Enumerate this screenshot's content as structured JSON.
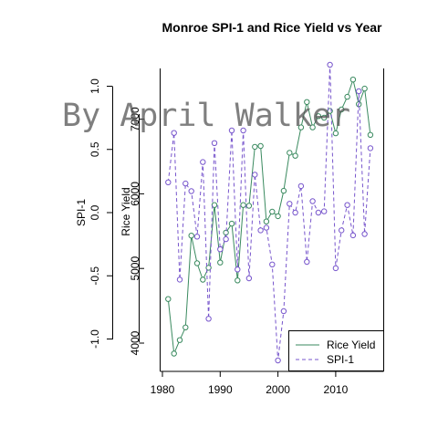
{
  "chart_data": {
    "type": "line",
    "title": "Monroe SPI-1 and Rice Yield vs Year",
    "xlabel": "",
    "x_ticks": [
      "1980",
      "1990",
      "2000",
      "2010"
    ],
    "left_axis": {
      "label": "SPI-1",
      "ticks": [
        "-1.0",
        "-0.5",
        "0.0",
        "0.5",
        "1.0"
      ],
      "range": [
        -1.0,
        1.0
      ]
    },
    "inner_axis": {
      "label": "Rice Yield",
      "ticks": [
        "4000",
        "5000",
        "6000",
        "7000"
      ]
    },
    "x": [
      1981,
      1982,
      1983,
      1984,
      1985,
      1986,
      1987,
      1988,
      1989,
      1990,
      1991,
      1992,
      1993,
      1994,
      1995,
      1996,
      1997,
      1998,
      1999,
      2000,
      2001,
      2002,
      2003,
      2004,
      2005,
      2006,
      2007,
      2008,
      2009,
      2010,
      2011,
      2012,
      2013,
      2014,
      2015,
      2016
    ],
    "series": [
      {
        "name": "Rice Yield",
        "color": "#3a8a5f",
        "line": "solid",
        "values": [
          4590,
          3860,
          4040,
          4210,
          5440,
          5070,
          4850,
          5010,
          5850,
          5080,
          5480,
          5600,
          4840,
          5850,
          5840,
          6630,
          6640,
          5630,
          5760,
          5700,
          6040,
          6550,
          6510,
          6890,
          7230,
          6890,
          7040,
          7020,
          7110,
          6810,
          7130,
          7300,
          7530,
          7200,
          7410,
          6790
        ]
      },
      {
        "name": "SPI-1",
        "color": "#7755cc",
        "line": "dashed",
        "values": [
          0.24,
          0.63,
          -0.53,
          0.23,
          0.17,
          -0.19,
          0.4,
          -0.84,
          0.55,
          -0.29,
          -0.21,
          0.65,
          -0.45,
          0.65,
          -0.52,
          0.3,
          -0.14,
          -0.12,
          -0.41,
          -1.17,
          -0.78,
          0.07,
          0.0,
          0.21,
          -0.39,
          0.09,
          0.0,
          0.01,
          1.17,
          -0.44,
          -0.14,
          0.06,
          -0.18,
          0.96,
          -0.17,
          0.51
        ]
      }
    ],
    "legend": {
      "position": "bottom-right",
      "entries": [
        "Rice Yield",
        "SPI-1"
      ]
    }
  },
  "watermark": "By April Walker"
}
